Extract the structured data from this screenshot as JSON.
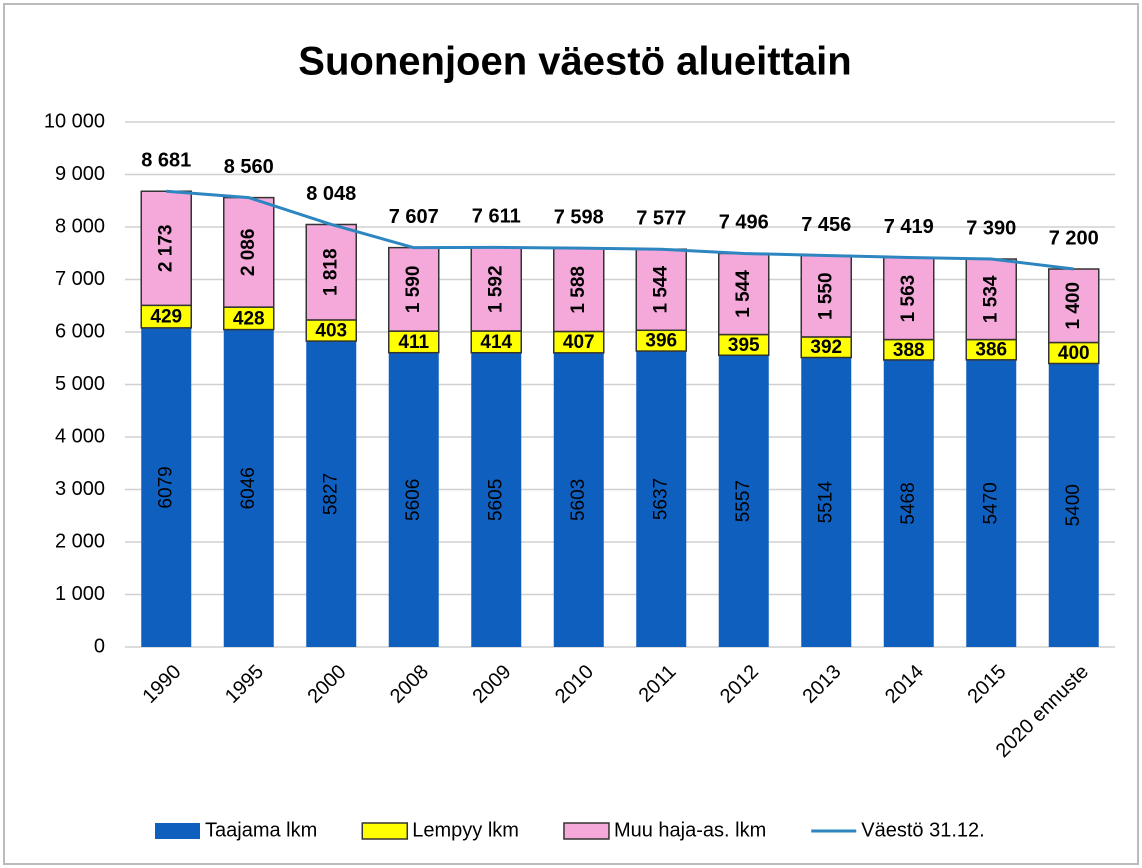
{
  "chart_data": {
    "type": "stacked-bar-line",
    "title": "Suonenjoen väestö alueittain",
    "categories": [
      "1990",
      "1995",
      "2000",
      "2008",
      "2009",
      "2010",
      "2011",
      "2012",
      "2013",
      "2014",
      "2015",
      "2020 ennuste"
    ],
    "series": [
      {
        "name": "Taajama lkm",
        "color": "#0f5fbf",
        "values": [
          6079,
          6046,
          5827,
          5606,
          5605,
          5603,
          5637,
          5557,
          5514,
          5468,
          5470,
          5400
        ]
      },
      {
        "name": "Lempyy lkm",
        "color": "#ffff00",
        "values": [
          429,
          428,
          403,
          411,
          414,
          407,
          396,
          395,
          392,
          388,
          386,
          400
        ]
      },
      {
        "name": "Muu haja-as. lkm",
        "color": "#f4a9da",
        "values": [
          2173,
          2086,
          1818,
          1590,
          1592,
          1588,
          1544,
          1544,
          1550,
          1563,
          1534,
          1400
        ],
        "value_labels": [
          "2 173",
          "2 086",
          "1 818",
          "1 590",
          "1 592",
          "1 588",
          "1 544",
          "1 544",
          "1 550",
          "1 563",
          "1 534",
          "1 400"
        ]
      },
      {
        "name": "Väestö 31.12.",
        "color": "#2e86c1",
        "type": "line",
        "values": [
          8681,
          8560,
          8048,
          7607,
          7611,
          7598,
          7577,
          7496,
          7456,
          7419,
          7390,
          7200
        ],
        "value_labels": [
          "8 681",
          "8 560",
          "8 048",
          "7 607",
          "7 611",
          "7 598",
          "7 577",
          "7 496",
          "7 456",
          "7 419",
          "7 390",
          "7 200"
        ]
      }
    ],
    "ylim": [
      0,
      10000
    ],
    "yticks": [
      0,
      {
        "value": 1000,
        "label": "1 000"
      },
      {
        "value": 2000,
        "label": "2 000"
      },
      {
        "value": 3000,
        "label": "3 000"
      },
      {
        "value": 4000,
        "label": "4 000"
      },
      {
        "value": 5000,
        "label": "5 000"
      },
      {
        "value": 6000,
        "label": "6 000"
      },
      {
        "value": 7000,
        "label": "7 000"
      },
      {
        "value": 8000,
        "label": "8 000"
      },
      {
        "value": 9000,
        "label": "9 000"
      },
      {
        "value": 10000,
        "label": "10 000"
      }
    ],
    "grid": true,
    "legend": "bottom"
  }
}
